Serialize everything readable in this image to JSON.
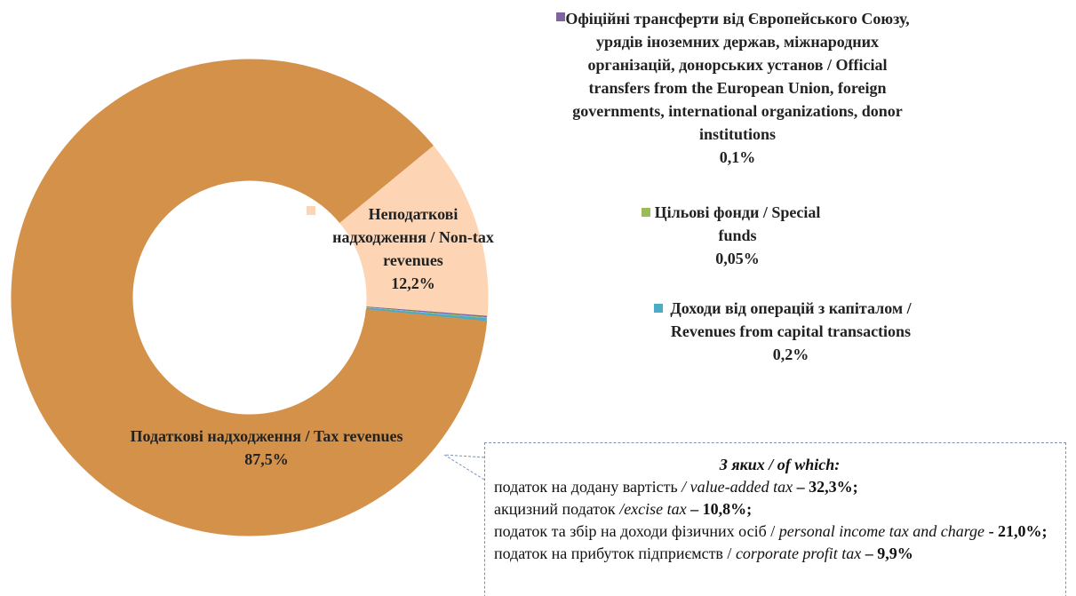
{
  "chart_data": {
    "type": "pie",
    "categories": [
      "Податкові надходження / Tax revenues",
      "Неподаткові надходження / Non-tax revenues",
      "Офіційні трансферти від Європейського Союзу, урядів іноземних держав, міжнародних організацій, донорських установ / Official transfers from the European Union, foreign governments, international organizations, donor institutions",
      "Цільові фонди / Special funds",
      "Доходи від операцій з капіталом / Revenues from capital transactions"
    ],
    "values": [
      87.5,
      12.2,
      0.1,
      0.05,
      0.2
    ],
    "value_labels": [
      "87,5%",
      "12,2%",
      "0,1%",
      "0,05%",
      "0,2%"
    ],
    "colors": [
      "#d4914a",
      "#fdd5b4",
      "#8064a2",
      "#9bbb59",
      "#4bacc6"
    ],
    "donut": true,
    "annotation": {
      "title": "З яких / of which:",
      "items": [
        {
          "text": "податок на додану вартість",
          "en": "/ value-added tax",
          "share": "– 32,3%;"
        },
        {
          "text": "акцизний податок",
          "en": "/excise tax",
          "share": "– 10,8%;"
        },
        {
          "text": "податок та збір на доходи фізичних осіб /",
          "en": "personal income tax and charge",
          "share": "- 21,0%;"
        },
        {
          "text": "податок на прибуток підприємств /",
          "en": "corporate profit tax",
          "share": "– 9,9%"
        }
      ]
    }
  }
}
